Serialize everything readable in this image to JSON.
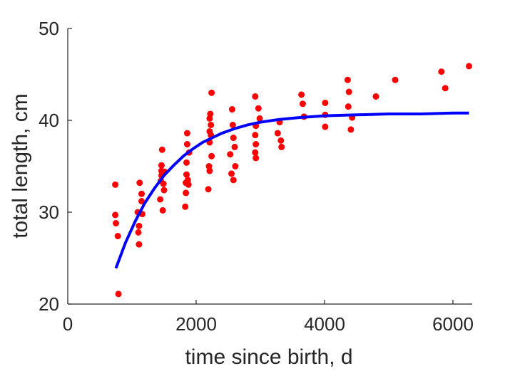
{
  "chart_data": {
    "type": "scatter",
    "title": "",
    "xlabel": "time since birth, d",
    "ylabel": "total length, cm",
    "xlim": [
      0,
      6300
    ],
    "ylim": [
      20,
      50
    ],
    "xticks": [
      0,
      2000,
      4000,
      6000
    ],
    "yticks": [
      20,
      30,
      40,
      50
    ],
    "grid": false,
    "colors": {
      "points": "#ff0000",
      "fit": "#0000ff",
      "axis": "#262626"
    },
    "points": [
      [
        740,
        33.0
      ],
      [
        740,
        29.7
      ],
      [
        750,
        28.8
      ],
      [
        780,
        27.4
      ],
      [
        790,
        21.1
      ],
      [
        1090,
        30.0
      ],
      [
        1100,
        27.8
      ],
      [
        1110,
        26.5
      ],
      [
        1110,
        28.5
      ],
      [
        1120,
        33.2
      ],
      [
        1150,
        31.2
      ],
      [
        1150,
        32.0
      ],
      [
        1160,
        29.8
      ],
      [
        1440,
        31.4
      ],
      [
        1450,
        33.4
      ],
      [
        1460,
        34.0
      ],
      [
        1460,
        34.5
      ],
      [
        1460,
        35.1
      ],
      [
        1470,
        36.8
      ],
      [
        1480,
        30.2
      ],
      [
        1490,
        33.1
      ],
      [
        1500,
        32.4
      ],
      [
        1510,
        34.4
      ],
      [
        1830,
        30.6
      ],
      [
        1840,
        32.1
      ],
      [
        1840,
        33.2
      ],
      [
        1850,
        34.1
      ],
      [
        1850,
        35.4
      ],
      [
        1860,
        37.4
      ],
      [
        1860,
        38.6
      ],
      [
        1870,
        33.5
      ],
      [
        1880,
        33.0
      ],
      [
        1890,
        36.5
      ],
      [
        2190,
        32.5
      ],
      [
        2200,
        35.0
      ],
      [
        2210,
        34.5
      ],
      [
        2210,
        37.6
      ],
      [
        2210,
        38.8
      ],
      [
        2210,
        40.2
      ],
      [
        2220,
        40.7
      ],
      [
        2230,
        39.5
      ],
      [
        2230,
        38.4
      ],
      [
        2240,
        36.1
      ],
      [
        2240,
        43.0
      ],
      [
        2530,
        36.3
      ],
      [
        2550,
        34.2
      ],
      [
        2560,
        41.2
      ],
      [
        2570,
        39.5
      ],
      [
        2580,
        38.1
      ],
      [
        2580,
        33.5
      ],
      [
        2600,
        37.1
      ],
      [
        2610,
        35.0
      ],
      [
        2920,
        42.6
      ],
      [
        2920,
        38.4
      ],
      [
        2920,
        36.5
      ],
      [
        2930,
        39.4
      ],
      [
        2930,
        37.4
      ],
      [
        2930,
        35.9
      ],
      [
        2970,
        41.3
      ],
      [
        2990,
        40.2
      ],
      [
        3270,
        38.6
      ],
      [
        3300,
        39.8
      ],
      [
        3320,
        37.8
      ],
      [
        3330,
        37.1
      ],
      [
        3640,
        42.8
      ],
      [
        3660,
        41.8
      ],
      [
        3680,
        40.4
      ],
      [
        4010,
        41.9
      ],
      [
        4010,
        40.6
      ],
      [
        4010,
        39.3
      ],
      [
        4360,
        44.4
      ],
      [
        4370,
        41.5
      ],
      [
        4380,
        43.1
      ],
      [
        4410,
        39.0
      ],
      [
        4430,
        40.3
      ],
      [
        4800,
        42.6
      ],
      [
        5100,
        44.4
      ],
      [
        5820,
        45.3
      ],
      [
        5880,
        43.5
      ],
      [
        6250,
        45.9
      ]
    ],
    "fit_curve": {
      "x": [
        750,
        900,
        1050,
        1200,
        1350,
        1500,
        1650,
        1800,
        1950,
        2100,
        2250,
        2400,
        2600,
        2800,
        3000,
        3300,
        3600,
        4000,
        4500,
        5000,
        5500,
        6000,
        6250
      ],
      "y": [
        23.9,
        26.7,
        29.0,
        31.0,
        32.6,
        34.0,
        35.1,
        36.1,
        36.9,
        37.6,
        38.1,
        38.6,
        39.1,
        39.5,
        39.8,
        40.1,
        40.3,
        40.5,
        40.6,
        40.7,
        40.7,
        40.8,
        40.8
      ]
    }
  }
}
